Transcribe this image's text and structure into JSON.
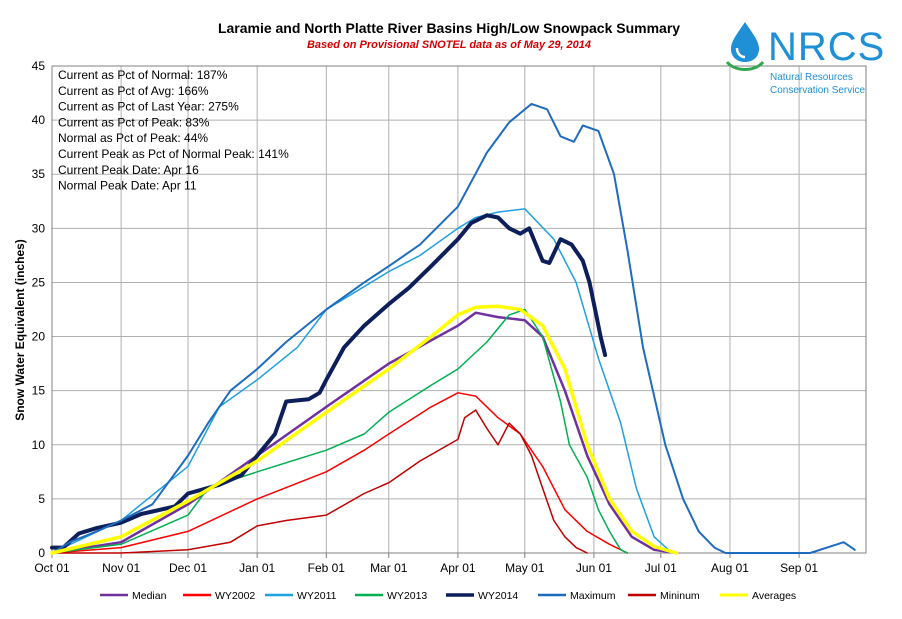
{
  "chart_data": {
    "type": "line",
    "title": "Laramie and North Platte River Basins High/Low Snowpack Summary",
    "subtitle": "Based on Provisional SNOTEL data as of May 29, 2014",
    "ylabel": "Snow Water Equivalent (inches)",
    "xlabel": "",
    "ylim": [
      0,
      45
    ],
    "yticks": [
      "0",
      "5",
      "10",
      "15",
      "20",
      "25",
      "30",
      "35",
      "40",
      "45"
    ],
    "xticks": [
      "Oct 01",
      "Nov 01",
      "Dec 01",
      "Jan 01",
      "Feb 01",
      "Mar 01",
      "Apr 01",
      "May 01",
      "Jun 01",
      "Jul 01",
      "Aug 01",
      "Sep 01"
    ],
    "grid": true,
    "legend_position": "bottom",
    "x_unit": "day of water year (Oct 01 = 0)",
    "series": [
      {
        "name": "Median",
        "color": "#7030a0",
        "width": 2.5,
        "points": [
          [
            0,
            0
          ],
          [
            31,
            1
          ],
          [
            61,
            4.5
          ],
          [
            92,
            9
          ],
          [
            123,
            13.5
          ],
          [
            151,
            17.5
          ],
          [
            182,
            21
          ],
          [
            190,
            22.2
          ],
          [
            200,
            21.8
          ],
          [
            212,
            21.5
          ],
          [
            220,
            20
          ],
          [
            230,
            15
          ],
          [
            240,
            9
          ],
          [
            250,
            4.5
          ],
          [
            260,
            1.5
          ],
          [
            270,
            0.3
          ],
          [
            280,
            0
          ]
        ]
      },
      {
        "name": "WY2002",
        "color": "#ff0000",
        "width": 1.5,
        "points": [
          [
            0,
            0
          ],
          [
            31,
            0.5
          ],
          [
            61,
            2
          ],
          [
            92,
            5
          ],
          [
            123,
            7.5
          ],
          [
            140,
            9.5
          ],
          [
            151,
            11
          ],
          [
            170,
            13.5
          ],
          [
            182,
            14.8
          ],
          [
            190,
            14.5
          ],
          [
            200,
            12.5
          ],
          [
            210,
            11
          ],
          [
            220,
            8
          ],
          [
            230,
            4
          ],
          [
            240,
            2
          ],
          [
            250,
            0.8
          ],
          [
            258,
            0
          ]
        ]
      },
      {
        "name": "WY2011",
        "color": "#1fa0e0",
        "width": 1.5,
        "points": [
          [
            0,
            0
          ],
          [
            31,
            3
          ],
          [
            61,
            8
          ],
          [
            75,
            13.5
          ],
          [
            92,
            16
          ],
          [
            110,
            19
          ],
          [
            123,
            22.5
          ],
          [
            135,
            24
          ],
          [
            151,
            26
          ],
          [
            165,
            27.5
          ],
          [
            182,
            30
          ],
          [
            190,
            31
          ],
          [
            200,
            31.5
          ],
          [
            212,
            31.8
          ],
          [
            225,
            29
          ],
          [
            235,
            25
          ],
          [
            245,
            18
          ],
          [
            255,
            12
          ],
          [
            262,
            6
          ],
          [
            270,
            1.5
          ],
          [
            278,
            0
          ]
        ]
      },
      {
        "name": "WY2013",
        "color": "#00b050",
        "width": 1.5,
        "points": [
          [
            0,
            0
          ],
          [
            31,
            0.8
          ],
          [
            61,
            3.5
          ],
          [
            70,
            6
          ],
          [
            92,
            7.5
          ],
          [
            123,
            9.5
          ],
          [
            140,
            11
          ],
          [
            151,
            13
          ],
          [
            170,
            15.5
          ],
          [
            182,
            17
          ],
          [
            195,
            19.5
          ],
          [
            205,
            22
          ],
          [
            212,
            22.5
          ],
          [
            220,
            20
          ],
          [
            228,
            14
          ],
          [
            232,
            10
          ],
          [
            240,
            7
          ],
          [
            245,
            4
          ],
          [
            250,
            2
          ],
          [
            255,
            0.3
          ],
          [
            258,
            0
          ]
        ]
      },
      {
        "name": "WY2014",
        "color": "#0c1f5a",
        "width": 4,
        "points": [
          [
            0,
            0.5
          ],
          [
            5,
            0.5
          ],
          [
            12,
            1.8
          ],
          [
            20,
            2.3
          ],
          [
            31,
            2.8
          ],
          [
            40,
            3.6
          ],
          [
            55,
            4.3
          ],
          [
            61,
            5.5
          ],
          [
            75,
            6.3
          ],
          [
            85,
            7.2
          ],
          [
            92,
            9
          ],
          [
            100,
            11
          ],
          [
            105,
            14
          ],
          [
            115,
            14.2
          ],
          [
            120,
            14.8
          ],
          [
            123,
            16
          ],
          [
            131,
            19
          ],
          [
            140,
            21
          ],
          [
            151,
            23
          ],
          [
            160,
            24.5
          ],
          [
            170,
            26.5
          ],
          [
            182,
            29
          ],
          [
            188,
            30.5
          ],
          [
            195,
            31.2
          ],
          [
            200,
            31
          ],
          [
            205,
            30
          ],
          [
            210,
            29.5
          ],
          [
            214,
            30
          ],
          [
            220,
            27
          ],
          [
            223,
            26.8
          ],
          [
            228,
            29
          ],
          [
            233,
            28.5
          ],
          [
            238,
            27
          ],
          [
            241,
            25
          ],
          [
            244,
            22
          ],
          [
            246,
            20
          ],
          [
            248,
            18.3
          ]
        ]
      },
      {
        "name": "Maximum",
        "color": "#1e6cc0",
        "width": 2,
        "points": [
          [
            0,
            0
          ],
          [
            8,
            1
          ],
          [
            20,
            2
          ],
          [
            31,
            3
          ],
          [
            45,
            4.5
          ],
          [
            61,
            9
          ],
          [
            70,
            12
          ],
          [
            80,
            15
          ],
          [
            92,
            17
          ],
          [
            105,
            19.5
          ],
          [
            123,
            22.5
          ],
          [
            140,
            25
          ],
          [
            151,
            26.5
          ],
          [
            165,
            28.5
          ],
          [
            182,
            32
          ],
          [
            195,
            37
          ],
          [
            205,
            39.8
          ],
          [
            215,
            41.5
          ],
          [
            222,
            41
          ],
          [
            228,
            38.5
          ],
          [
            234,
            38
          ],
          [
            238,
            39.5
          ],
          [
            245,
            39
          ],
          [
            252,
            35
          ],
          [
            258,
            28
          ],
          [
            265,
            19
          ],
          [
            275,
            10
          ],
          [
            283,
            5
          ],
          [
            290,
            2
          ],
          [
            297,
            0.5
          ],
          [
            302,
            0
          ],
          [
            340,
            0
          ],
          [
            355,
            1
          ],
          [
            360,
            0.3
          ]
        ]
      },
      {
        "name": "Mininum",
        "color": "#c00000",
        "width": 1.5,
        "points": [
          [
            0,
            0
          ],
          [
            31,
            0
          ],
          [
            61,
            0.3
          ],
          [
            80,
            1
          ],
          [
            92,
            2.5
          ],
          [
            105,
            3
          ],
          [
            123,
            3.5
          ],
          [
            140,
            5.5
          ],
          [
            151,
            6.5
          ],
          [
            165,
            8.5
          ],
          [
            182,
            10.5
          ],
          [
            185,
            12.5
          ],
          [
            190,
            13.2
          ],
          [
            195,
            11.5
          ],
          [
            200,
            10
          ],
          [
            205,
            12
          ],
          [
            210,
            11
          ],
          [
            215,
            9
          ],
          [
            220,
            6
          ],
          [
            225,
            3
          ],
          [
            230,
            1.5
          ],
          [
            235,
            0.5
          ],
          [
            240,
            0
          ]
        ]
      },
      {
        "name": "Averages",
        "color": "#ffff00",
        "width": 3.5,
        "points": [
          [
            0,
            0
          ],
          [
            31,
            1.5
          ],
          [
            61,
            4.8
          ],
          [
            92,
            8.5
          ],
          [
            123,
            13
          ],
          [
            151,
            17
          ],
          [
            170,
            20
          ],
          [
            182,
            22
          ],
          [
            190,
            22.7
          ],
          [
            200,
            22.8
          ],
          [
            210,
            22.5
          ],
          [
            220,
            21
          ],
          [
            230,
            17
          ],
          [
            240,
            10
          ],
          [
            250,
            5
          ],
          [
            260,
            2
          ],
          [
            270,
            0.6
          ],
          [
            280,
            0
          ]
        ]
      }
    ],
    "annotations": [
      "Current  as Pct of Normal: 187%",
      "Current  as Pct of Avg: 166%",
      "Current  as Pct of Last Year: 275%",
      "Current  as Pct of Peak: 83%",
      "Normal  as Pct of Peak: 44%",
      "Current  Peak as Pct of Normal  Peak: 141%",
      "Current  Peak Date:  Apr 16",
      "Normal  Peak Date:  Apr 11"
    ]
  },
  "logo": {
    "name": "NRCS",
    "line1": "Natural Resources",
    "line2": "Conservation Service",
    "icon": "water-drop-icon",
    "color": "#1f8fd6"
  }
}
